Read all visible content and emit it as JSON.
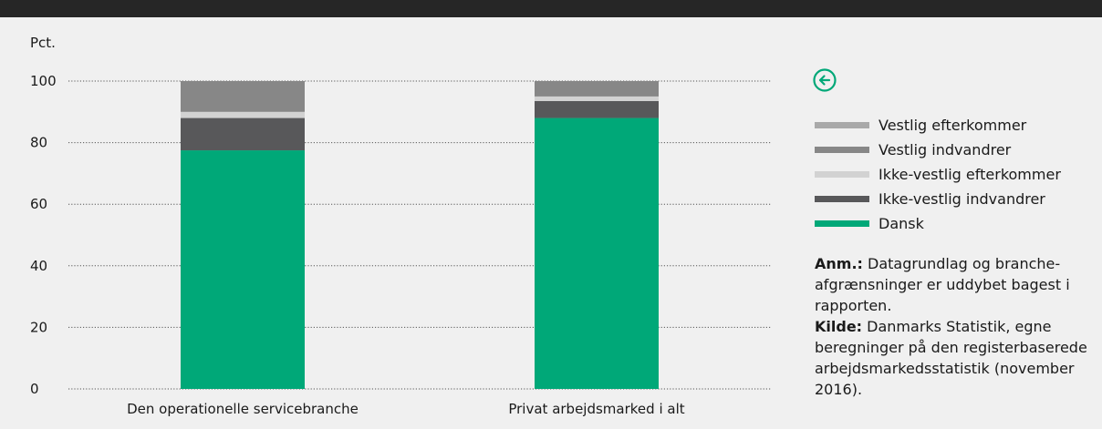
{
  "chart_data": {
    "type": "bar",
    "stacked": true,
    "ylabel": "Pct.",
    "ylim": [
      0,
      100
    ],
    "yticks": [
      0,
      20,
      40,
      60,
      80,
      100
    ],
    "grid": true,
    "legend_position": "right",
    "categories": [
      "Den operationelle servicebranche",
      "Privat arbejdsmarked i alt"
    ],
    "series": [
      {
        "name": "Dansk",
        "color": "#00a878",
        "values": [
          77.5,
          88.0
        ]
      },
      {
        "name": "Ikke-vestlig indvandrer",
        "color": "#58585a",
        "values": [
          10.5,
          5.5
        ]
      },
      {
        "name": "Ikke-vestlig efterkommer",
        "color": "#d2d2d2",
        "values": [
          2.0,
          1.5
        ]
      },
      {
        "name": "Vestlig indvandrer",
        "color": "#878787",
        "values": [
          10.0,
          5.0
        ]
      },
      {
        "name": "Vestlig efterkommer",
        "color": "#a9a9a9",
        "values": [
          0.0,
          0.0
        ]
      }
    ]
  },
  "legend_order": [
    "Vestlig efterkommer",
    "Vestlig indvandrer",
    "Ikke-vestlig efterkommer",
    "Ikke-vestlig indvandrer",
    "Dansk"
  ],
  "legend": [
    {
      "label": "Vestlig efterkommer",
      "color": "#a9a9a9"
    },
    {
      "label": "Vestlig indvandrer",
      "color": "#878787"
    },
    {
      "label": "Ikke-vestlig efterkommer",
      "color": "#d2d2d2"
    },
    {
      "label": "Ikke-vestlig indvandrer",
      "color": "#58585a"
    },
    {
      "label": "Dansk",
      "color": "#00a878"
    }
  ],
  "accent_color": "#00a878",
  "icon": "arrow-left-circle-icon",
  "note": {
    "anm_label": "Anm.:",
    "anm_text": " Datagrundlag og branche-afgrænsninger er uddybet bagest i rapporten.",
    "kilde_label": "Kilde:",
    "kilde_text": " Danmarks Statistik, egne beregninger på den registerbaserede arbejdsmarkedsstatistik (november 2016)."
  }
}
